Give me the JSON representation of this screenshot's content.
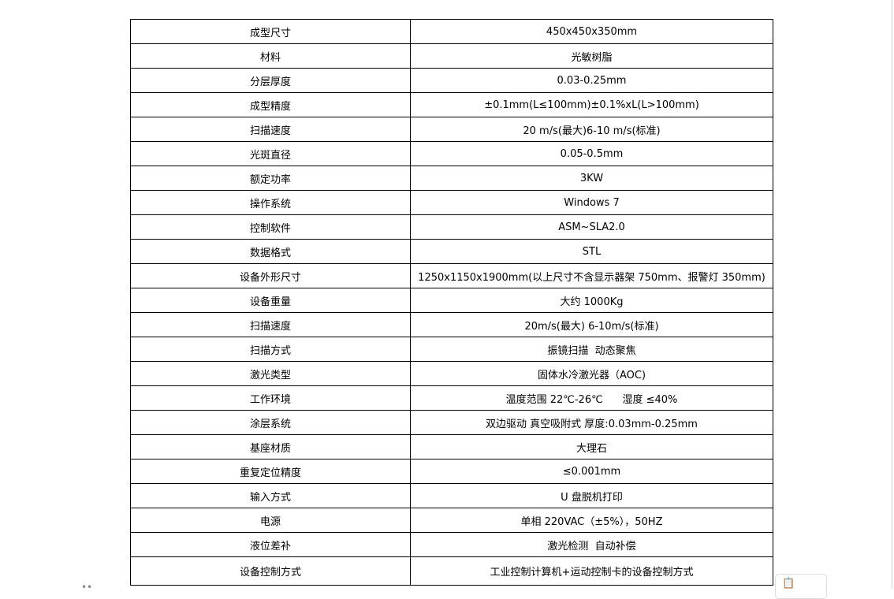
{
  "rows": [
    {
      "label": "成型尺寸",
      "value": "450x450x350mm"
    },
    {
      "label": "材料",
      "value": "光敏树脂"
    },
    {
      "label": "分层厚度",
      "value": "0.03-0.25mm"
    },
    {
      "label": "成型精度",
      "value": "±0.1mm(L≤100mm)±0.1%xL(L>100mm)"
    },
    {
      "label": "扫描速度",
      "value": "20 m/s(最大)6-10 m/s(标准)"
    },
    {
      "label": "光斑直径",
      "value": "0.05-0.5mm"
    },
    {
      "label": "额定功率",
      "value": "3KW"
    },
    {
      "label": "操作系统",
      "value": "Windows 7"
    },
    {
      "label": "控制软件",
      "value": "ASM~SLA2.0"
    },
    {
      "label": "数据格式",
      "value": "STL"
    },
    {
      "label": "设备外形尺寸",
      "value": "1250x1150x1900mm(以上尺寸不含显示器架 750mm、报警灯 350mm)"
    },
    {
      "label": "设备重量",
      "value": "大约 1000Kg"
    },
    {
      "label": "扫描速度",
      "value": "20m/s(最大) 6-10m/s(标准)"
    },
    {
      "label": "扫描方式",
      "value": "振镜扫描  动态聚焦"
    },
    {
      "label": "激光类型",
      "value": "固体水冷激光器（AOC)"
    },
    {
      "label": "工作环境",
      "value": "温度范围 22℃-26℃      湿度 ≤40%"
    },
    {
      "label": "涂层系统",
      "value": "双边驱动 真空吸附式 厚度:0.03mm-0.25mm"
    },
    {
      "label": "基座材质",
      "value": "大理石"
    },
    {
      "label": "重复定位精度",
      "value": "≤0.001mm"
    },
    {
      "label": "输入方式",
      "value": "U 盘脱机打印"
    },
    {
      "label": "电源",
      "value": "单相 220VAC（±5%），50HZ"
    },
    {
      "label": "液位差补",
      "value": "激光检测  自动补偿"
    },
    {
      "label": "设备控制方式",
      "value": "工业控制计算机+运动控制卡的设备控制方式"
    }
  ],
  "paste_icon": "clipboard-icon"
}
